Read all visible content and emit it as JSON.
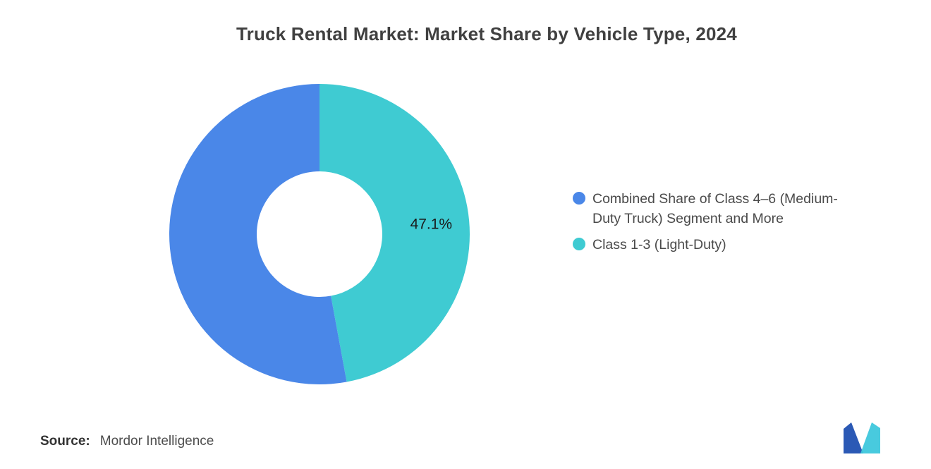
{
  "page_title": "Truck Rental Market: Market Share by Vehicle Type, 2024",
  "chart_data": {
    "type": "pie",
    "subtype": "donut",
    "title": "Truck Rental Market: Market Share by Vehicle Type, 2024",
    "inner_radius_ratio": 0.42,
    "start_angle_deg": 0,
    "direction": "clockwise-from-top",
    "segments": [
      {
        "label": "Class 1-3 (Light-Duty)",
        "value": 47.1,
        "color": "#3FCBD2",
        "data_label": "47.1%"
      },
      {
        "label": "Combined Share of Class 4–6 (Medium-Duty Truck) Segment and More",
        "value": 52.9,
        "color": "#4A87E8",
        "data_label": ""
      }
    ],
    "data_label_color": "#1a1a1a",
    "legend_position": "right"
  },
  "legend": {
    "items": [
      {
        "label": "Combined Share of Class 4–6 (Medium-Duty Truck) Segment and More",
        "color": "#4A87E8"
      },
      {
        "label": "Class 1-3 (Light-Duty)",
        "color": "#3FCBD2"
      }
    ]
  },
  "footer": {
    "source_label": "Source:",
    "source_text": "Mordor Intelligence"
  },
  "logo": {
    "name": "mordor-intelligence-logo",
    "colors": {
      "primary": "#2B59B5",
      "secondary": "#38C6DB"
    }
  }
}
